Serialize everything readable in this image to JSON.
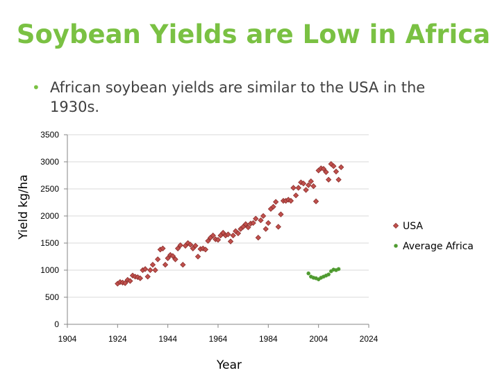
{
  "slide": {
    "title": "Soybean Yields are Low in Africa",
    "bullet": "African soybean yields are similar to the USA in the 1930s."
  },
  "colors": {
    "title": "#7ac143",
    "usa_fill": "#c0504d",
    "usa_stroke": "#8b2e2b",
    "africa": "#4e9a2f"
  },
  "chart_data": {
    "type": "scatter",
    "xlabel": "Year",
    "ylabel": "Yield kg/ha",
    "xlim": [
      1904,
      2024
    ],
    "ylim": [
      0,
      3500
    ],
    "xticks": [
      "1904",
      "1924",
      "1944",
      "1964",
      "1984",
      "2004",
      "2024"
    ],
    "yticks": [
      "0",
      "500",
      "1000",
      "1500",
      "2000",
      "2500",
      "3000",
      "3500"
    ],
    "legend_position": "right",
    "series": [
      {
        "name": "USA",
        "marker": "diamond",
        "points": [
          [
            1924,
            750
          ],
          [
            1925,
            780
          ],
          [
            1926,
            770
          ],
          [
            1927,
            760
          ],
          [
            1928,
            820
          ],
          [
            1929,
            800
          ],
          [
            1930,
            900
          ],
          [
            1931,
            880
          ],
          [
            1932,
            870
          ],
          [
            1933,
            850
          ],
          [
            1934,
            1000
          ],
          [
            1935,
            1020
          ],
          [
            1936,
            880
          ],
          [
            1937,
            1000
          ],
          [
            1938,
            1100
          ],
          [
            1939,
            1000
          ],
          [
            1940,
            1200
          ],
          [
            1941,
            1380
          ],
          [
            1942,
            1400
          ],
          [
            1943,
            1100
          ],
          [
            1944,
            1220
          ],
          [
            1945,
            1280
          ],
          [
            1946,
            1260
          ],
          [
            1947,
            1200
          ],
          [
            1948,
            1400
          ],
          [
            1949,
            1460
          ],
          [
            1950,
            1100
          ],
          [
            1951,
            1450
          ],
          [
            1952,
            1500
          ],
          [
            1953,
            1470
          ],
          [
            1954,
            1400
          ],
          [
            1955,
            1450
          ],
          [
            1956,
            1250
          ],
          [
            1957,
            1390
          ],
          [
            1958,
            1400
          ],
          [
            1959,
            1380
          ],
          [
            1960,
            1540
          ],
          [
            1961,
            1600
          ],
          [
            1962,
            1640
          ],
          [
            1963,
            1570
          ],
          [
            1964,
            1560
          ],
          [
            1965,
            1640
          ],
          [
            1966,
            1690
          ],
          [
            1967,
            1640
          ],
          [
            1968,
            1660
          ],
          [
            1969,
            1530
          ],
          [
            1970,
            1640
          ],
          [
            1971,
            1720
          ],
          [
            1972,
            1680
          ],
          [
            1973,
            1760
          ],
          [
            1974,
            1800
          ],
          [
            1975,
            1850
          ],
          [
            1976,
            1790
          ],
          [
            1977,
            1860
          ],
          [
            1978,
            1870
          ],
          [
            1979,
            1950
          ],
          [
            1980,
            1600
          ],
          [
            1981,
            1920
          ],
          [
            1982,
            2000
          ],
          [
            1983,
            1760
          ],
          [
            1984,
            1870
          ],
          [
            1985,
            2130
          ],
          [
            1986,
            2170
          ],
          [
            1987,
            2260
          ],
          [
            1988,
            1800
          ],
          [
            1989,
            2030
          ],
          [
            1990,
            2280
          ],
          [
            1991,
            2280
          ],
          [
            1992,
            2300
          ],
          [
            1993,
            2280
          ],
          [
            1994,
            2520
          ],
          [
            1995,
            2380
          ],
          [
            1996,
            2520
          ],
          [
            1997,
            2620
          ],
          [
            1998,
            2600
          ],
          [
            1999,
            2480
          ],
          [
            2000,
            2570
          ],
          [
            2001,
            2640
          ],
          [
            2002,
            2550
          ],
          [
            2003,
            2270
          ],
          [
            2004,
            2840
          ],
          [
            2005,
            2880
          ],
          [
            2006,
            2870
          ],
          [
            2007,
            2810
          ],
          [
            2008,
            2670
          ],
          [
            2009,
            2960
          ],
          [
            2010,
            2920
          ],
          [
            2011,
            2820
          ],
          [
            2012,
            2670
          ],
          [
            2013,
            2900
          ]
        ]
      },
      {
        "name": "Average Africa",
        "marker": "star",
        "points": [
          [
            2000,
            940
          ],
          [
            2001,
            880
          ],
          [
            2002,
            860
          ],
          [
            2003,
            850
          ],
          [
            2004,
            830
          ],
          [
            2005,
            860
          ],
          [
            2006,
            880
          ],
          [
            2007,
            900
          ],
          [
            2008,
            920
          ],
          [
            2009,
            980
          ],
          [
            2010,
            1010
          ],
          [
            2011,
            1000
          ],
          [
            2012,
            1020
          ]
        ]
      }
    ]
  }
}
